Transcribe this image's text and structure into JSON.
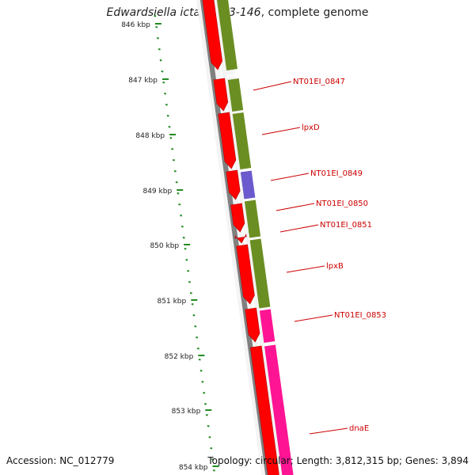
{
  "title": {
    "species": "Edwardsiella ictaluri 93-146",
    "suffix": ", complete genome"
  },
  "footer": {
    "accession": "Accession: NC_012779",
    "summary": "Topology: circular; Length: 3,812,315 bp; Genes: 3,894"
  },
  "colors": {
    "cds": "#ff0000",
    "gene": "#6b8e23",
    "rna": "#ff1493",
    "other": "#6a5acd",
    "backbone": "#808080",
    "ticks": "#228b22",
    "labels": "#cc0000"
  },
  "axis_ticks": [
    {
      "label": "846 kbp"
    },
    {
      "label": "847 kbp"
    },
    {
      "label": "848 kbp"
    },
    {
      "label": "849 kbp"
    },
    {
      "label": "850 kbp"
    },
    {
      "label": "851 kbp"
    },
    {
      "label": "852 kbp"
    },
    {
      "label": "853 kbp"
    },
    {
      "label": "854 kbp"
    }
  ],
  "feature_labels": [
    {
      "name": "NT01EI_0847"
    },
    {
      "name": "lpxD"
    },
    {
      "name": "NT01EI_0849"
    },
    {
      "name": "NT01EI_0850"
    },
    {
      "name": "NT01EI_0851"
    },
    {
      "name": "lpxB"
    },
    {
      "name": "NT01EI_0853"
    },
    {
      "name": "dnaE"
    }
  ]
}
